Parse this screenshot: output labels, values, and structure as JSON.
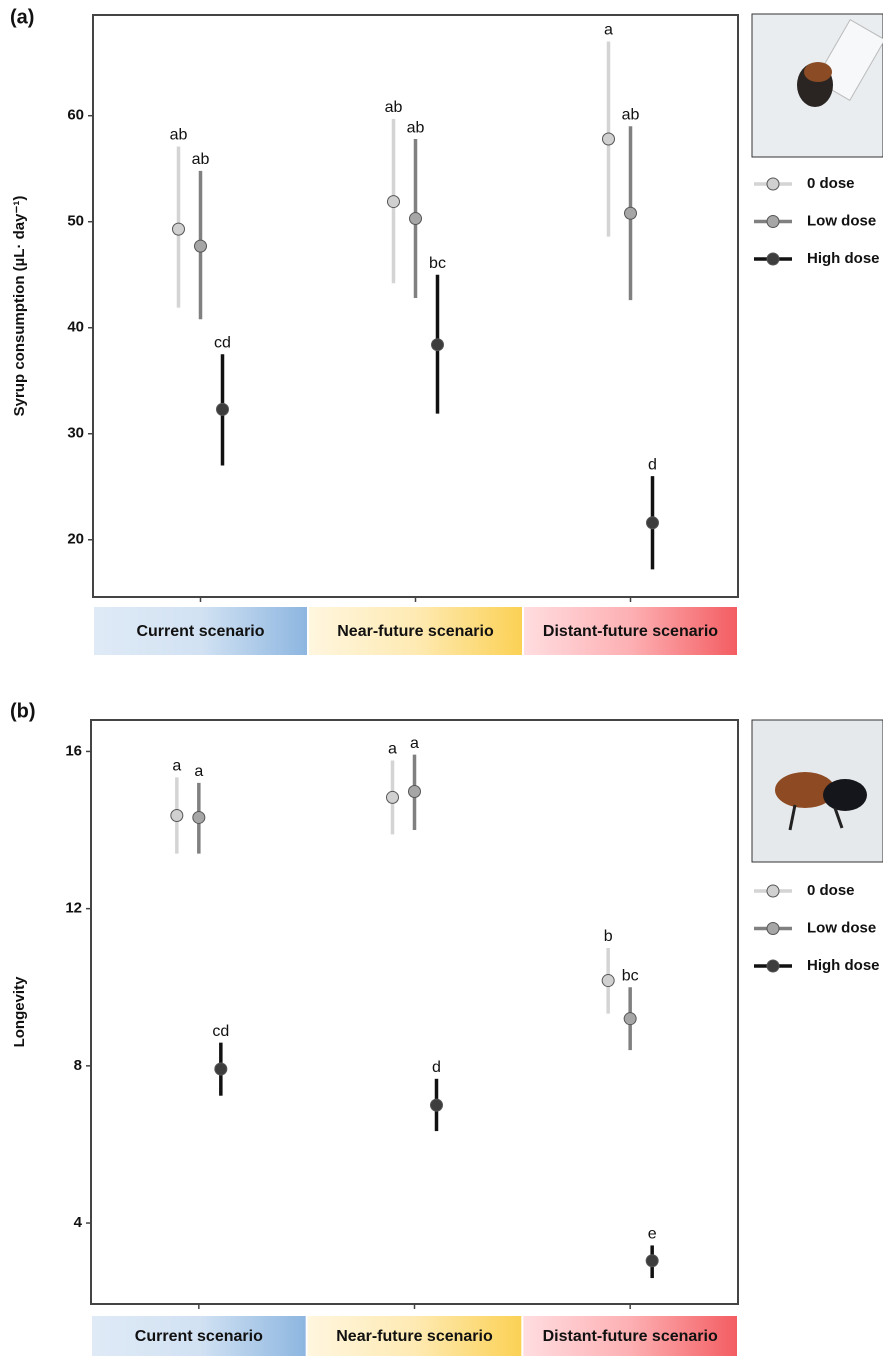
{
  "chart_data": [
    {
      "type": "errorbar",
      "panel_label": "(a)",
      "y_label": "Syrup consumption (µL· day⁻¹)",
      "categories": [
        "Current scenario",
        "Near-future scenario",
        "Distant-future scenario"
      ],
      "ylim": [
        14.6,
        69.5
      ],
      "yticks": [
        20,
        30,
        40,
        50,
        60
      ],
      "series": [
        {
          "name": "0 dose",
          "color": "#d4d4d4",
          "marker_color": "#d0d0d0",
          "values": [
            49.3,
            51.9,
            57.8
          ],
          "lower": [
            41.9,
            44.2,
            48.6
          ],
          "upper": [
            57.1,
            59.7,
            67.0
          ],
          "letters": [
            "ab",
            "ab",
            "a"
          ]
        },
        {
          "name": "Low dose",
          "color": "#808080",
          "marker_color": "#a6a6a6",
          "values": [
            47.7,
            50.3,
            50.8
          ],
          "lower": [
            40.8,
            42.8,
            42.6
          ],
          "upper": [
            54.8,
            57.8,
            59.0
          ],
          "letters": [
            "ab",
            "ab",
            "ab"
          ]
        },
        {
          "name": "High dose",
          "color": "#111111",
          "marker_color": "#3d3d3d",
          "values": [
            32.3,
            38.4,
            21.6
          ],
          "lower": [
            27.0,
            31.9,
            17.2
          ],
          "upper": [
            37.5,
            45.0,
            26.0
          ],
          "letters": [
            "cd",
            "bc",
            "d"
          ]
        }
      ]
    },
    {
      "type": "errorbar",
      "panel_label": "(b)",
      "y_label": "Longevity",
      "categories": [
        "Current scenario",
        "Near-future scenario",
        "Distant-future scenario"
      ],
      "ylim": [
        1.94,
        16.8
      ],
      "yticks": [
        4,
        8,
        12,
        16
      ],
      "series": [
        {
          "name": "0 dose",
          "color": "#d4d4d4",
          "marker_color": "#d0d0d0",
          "values": [
            14.37,
            14.83,
            10.17
          ],
          "lower": [
            13.4,
            13.89,
            9.33
          ],
          "upper": [
            15.34,
            15.77,
            11.0
          ],
          "letters": [
            "a",
            "a",
            "b"
          ]
        },
        {
          "name": "Low dose",
          "color": "#808080",
          "marker_color": "#a6a6a6",
          "values": [
            14.32,
            14.98,
            9.2
          ],
          "lower": [
            13.4,
            14.0,
            8.4
          ],
          "upper": [
            15.2,
            15.92,
            10.0
          ],
          "letters": [
            "a",
            "a",
            "bc"
          ]
        },
        {
          "name": "High dose",
          "color": "#111111",
          "marker_color": "#3d3d3d",
          "values": [
            7.92,
            7.0,
            3.04
          ],
          "lower": [
            7.24,
            6.34,
            2.6
          ],
          "upper": [
            8.59,
            7.67,
            3.43
          ],
          "letters": [
            "cd",
            "d",
            "e"
          ]
        }
      ]
    }
  ]
}
